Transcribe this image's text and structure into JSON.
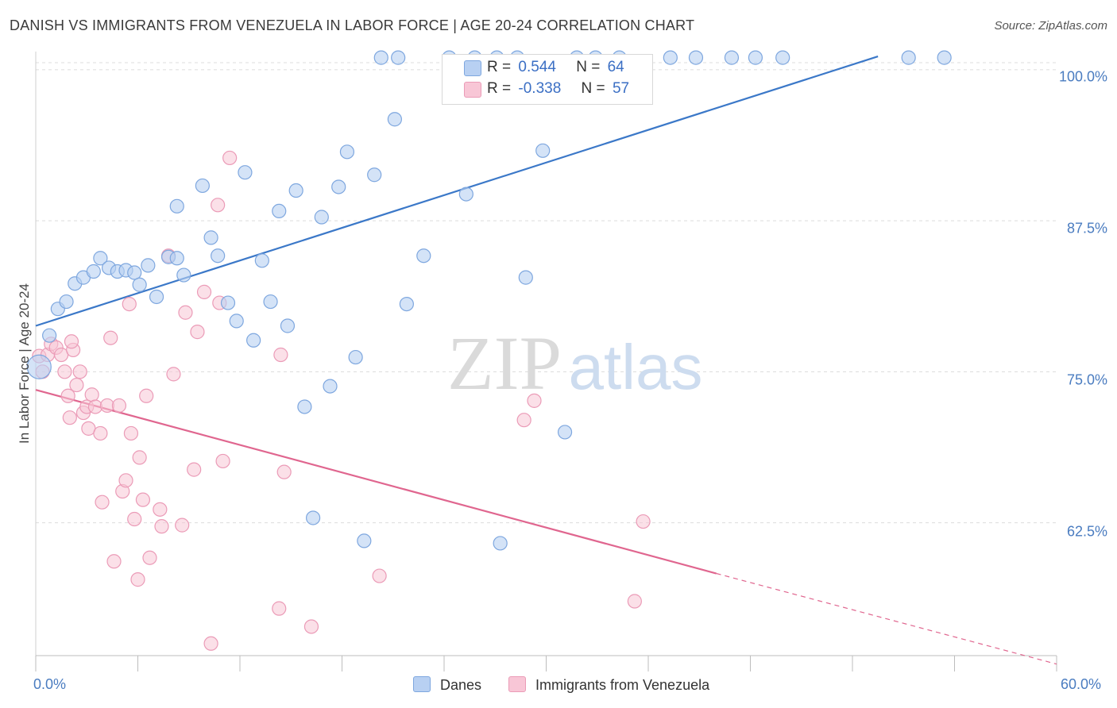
{
  "header": {
    "title": "DANISH VS IMMIGRANTS FROM VENEZUELA IN LABOR FORCE | AGE 20-24 CORRELATION CHART",
    "source": "Source: ZipAtlas.com"
  },
  "watermark": {
    "zip": "ZIP",
    "atlas": "atlas"
  },
  "stats_box": {
    "danes": {
      "r_label": "R =",
      "r_value": "0.544",
      "n_label": "N =",
      "n_value": "64"
    },
    "venezuela": {
      "r_label": "R =",
      "r_value": "-0.338",
      "n_label": "N =",
      "n_value": "57"
    }
  },
  "legend": {
    "danes": "Danes",
    "venezuela": "Immigrants from Venezuela"
  },
  "colors": {
    "danes_fill": "#b8d0f2",
    "danes_stroke": "#7ea7df",
    "danes_line": "#3b78c8",
    "venezuela_fill": "#f8c6d6",
    "venezuela_stroke": "#eb9bb7",
    "venezuela_line": "#e0668f",
    "tick_text": "#4a7cc0",
    "grid": "#dcdcdc"
  },
  "chart_data": {
    "type": "scatter",
    "title": "DANISH VS IMMIGRANTS FROM VENEZUELA IN LABOR FORCE | AGE 20-24 CORRELATION CHART",
    "xlabel": "",
    "ylabel": "In Labor Force | Age 20-24",
    "xlim": [
      0,
      60
    ],
    "ylim": [
      51.5,
      101.5
    ],
    "x_tick_labels": [
      "0.0%",
      "60.0%"
    ],
    "y_ticks": [
      100,
      87.5,
      75,
      62.5
    ],
    "y_tick_labels": [
      "100.0%",
      "87.5%",
      "75.0%",
      "62.5%"
    ],
    "grid": true,
    "legend_position": "bottom-center",
    "series": [
      {
        "name": "Danes",
        "r": 0.544,
        "n": 64,
        "trend": {
          "x": [
            0,
            49.5
          ],
          "y": [
            78.8,
            101.1
          ]
        },
        "points": [
          [
            0.2,
            75.4
          ],
          [
            0.8,
            78.0
          ],
          [
            1.3,
            80.2
          ],
          [
            1.8,
            80.8
          ],
          [
            2.3,
            82.3
          ],
          [
            2.8,
            82.8
          ],
          [
            3.4,
            83.3
          ],
          [
            3.8,
            84.4
          ],
          [
            4.3,
            83.6
          ],
          [
            4.8,
            83.3
          ],
          [
            5.3,
            83.4
          ],
          [
            5.8,
            83.2
          ],
          [
            6.1,
            82.2
          ],
          [
            6.6,
            83.8
          ],
          [
            7.1,
            81.2
          ],
          [
            7.8,
            84.5
          ],
          [
            8.3,
            84.4
          ],
          [
            8.7,
            83.0
          ],
          [
            8.3,
            88.7
          ],
          [
            9.8,
            90.4
          ],
          [
            10.3,
            86.1
          ],
          [
            10.7,
            84.6
          ],
          [
            11.3,
            80.7
          ],
          [
            11.8,
            79.2
          ],
          [
            12.3,
            91.5
          ],
          [
            12.8,
            77.6
          ],
          [
            13.3,
            84.2
          ],
          [
            13.8,
            80.8
          ],
          [
            14.3,
            88.3
          ],
          [
            14.8,
            78.8
          ],
          [
            15.3,
            90.0
          ],
          [
            15.8,
            72.1
          ],
          [
            16.3,
            62.9
          ],
          [
            16.8,
            87.8
          ],
          [
            17.3,
            73.8
          ],
          [
            17.8,
            90.3
          ],
          [
            18.3,
            93.2
          ],
          [
            18.8,
            76.2
          ],
          [
            19.3,
            61.0
          ],
          [
            19.9,
            91.3
          ],
          [
            21.1,
            95.9
          ],
          [
            21.8,
            80.6
          ],
          [
            22.8,
            84.6
          ],
          [
            25.3,
            89.7
          ],
          [
            27.3,
            60.8
          ],
          [
            28.8,
            82.8
          ],
          [
            29.8,
            93.3
          ],
          [
            31.1,
            70.0
          ],
          [
            20.3,
            101.0
          ],
          [
            21.3,
            101.0
          ],
          [
            24.3,
            101.0
          ],
          [
            25.8,
            101.0
          ],
          [
            27.1,
            101.0
          ],
          [
            28.3,
            101.0
          ],
          [
            31.8,
            101.0
          ],
          [
            32.9,
            101.0
          ],
          [
            34.3,
            101.0
          ],
          [
            37.3,
            101.0
          ],
          [
            38.8,
            101.0
          ],
          [
            40.9,
            101.0
          ],
          [
            42.3,
            101.0
          ],
          [
            43.9,
            101.0
          ],
          [
            51.3,
            101.0
          ],
          [
            53.4,
            101.0
          ]
        ]
      },
      {
        "name": "Immigrants from Venezuela",
        "r": -0.338,
        "n": 57,
        "trend": {
          "x": [
            0,
            40.0
          ],
          "y": [
            73.5,
            58.3
          ]
        },
        "trend_extension": {
          "x": [
            40.0,
            60
          ],
          "y": [
            58.3,
            50.8
          ]
        },
        "points": [
          [
            0.2,
            76.3
          ],
          [
            0.4,
            75.0
          ],
          [
            0.7,
            76.4
          ],
          [
            0.9,
            77.3
          ],
          [
            1.2,
            77.0
          ],
          [
            1.5,
            76.4
          ],
          [
            1.7,
            75.0
          ],
          [
            1.9,
            73.0
          ],
          [
            2.0,
            71.2
          ],
          [
            2.2,
            76.8
          ],
          [
            2.4,
            73.9
          ],
          [
            2.6,
            75.0
          ],
          [
            2.8,
            71.6
          ],
          [
            3.0,
            72.1
          ],
          [
            3.1,
            70.3
          ],
          [
            3.3,
            73.1
          ],
          [
            3.5,
            72.1
          ],
          [
            3.8,
            69.9
          ],
          [
            3.9,
            64.2
          ],
          [
            4.2,
            72.2
          ],
          [
            4.4,
            77.8
          ],
          [
            4.6,
            59.3
          ],
          [
            4.9,
            72.2
          ],
          [
            5.1,
            65.1
          ],
          [
            5.3,
            66.0
          ],
          [
            5.5,
            80.6
          ],
          [
            5.6,
            69.9
          ],
          [
            5.8,
            62.8
          ],
          [
            6.0,
            57.8
          ],
          [
            6.1,
            67.9
          ],
          [
            6.3,
            64.4
          ],
          [
            6.5,
            73.0
          ],
          [
            6.7,
            59.6
          ],
          [
            7.3,
            63.6
          ],
          [
            7.4,
            62.2
          ],
          [
            7.8,
            84.6
          ],
          [
            8.1,
            74.8
          ],
          [
            8.6,
            62.3
          ],
          [
            8.8,
            79.9
          ],
          [
            9.3,
            66.9
          ],
          [
            9.5,
            78.3
          ],
          [
            9.9,
            81.6
          ],
          [
            10.3,
            52.5
          ],
          [
            10.7,
            88.8
          ],
          [
            10.8,
            80.7
          ],
          [
            11.0,
            67.6
          ],
          [
            11.4,
            92.7
          ],
          [
            14.3,
            55.4
          ],
          [
            14.4,
            76.4
          ],
          [
            14.6,
            66.7
          ],
          [
            16.2,
            53.9
          ],
          [
            20.2,
            58.1
          ],
          [
            28.7,
            71.0
          ],
          [
            35.2,
            56.0
          ],
          [
            35.7,
            62.6
          ],
          [
            29.3,
            72.6
          ],
          [
            2.1,
            77.5
          ]
        ]
      }
    ]
  }
}
